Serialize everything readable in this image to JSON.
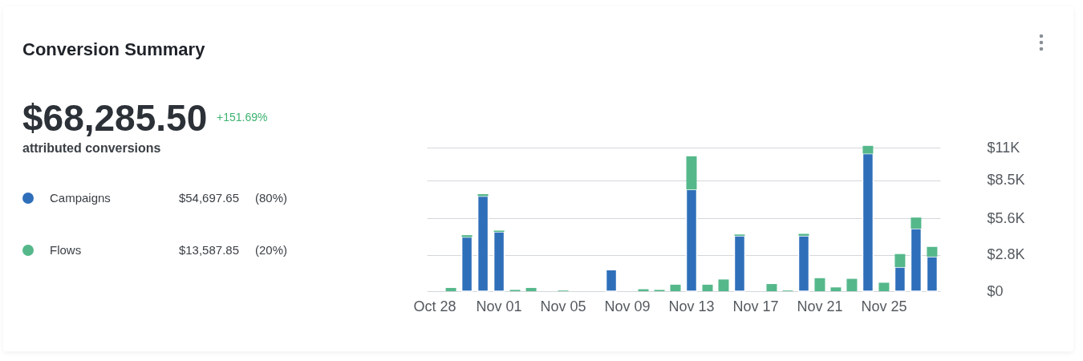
{
  "chart_data": {
    "type": "bar",
    "title": "Conversion Summary",
    "annotations": [
      "$68,285.50",
      "+151.69%",
      "attributed conversions",
      "$54,697.65",
      "(80%)",
      "$13,587.85",
      "(20%)"
    ],
    "categories": [
      "Oct 28",
      null,
      null,
      null,
      "Nov 01",
      null,
      null,
      null,
      "Nov 05",
      null,
      null,
      null,
      "Nov 09",
      null,
      null,
      null,
      "Nov 13",
      null,
      null,
      null,
      "Nov 17",
      null,
      null,
      null,
      "Nov 21",
      null,
      null,
      null,
      "Nov 25",
      null,
      null,
      null
    ],
    "stacked": true,
    "series": [
      {
        "name": "Campaigns",
        "color": "#2f6fba",
        "values": [
          0,
          0,
          4150,
          7300,
          4550,
          0,
          0,
          0,
          0,
          0,
          0,
          1650,
          0,
          0,
          0,
          0,
          7800,
          0,
          0,
          4250,
          0,
          0,
          0,
          4250,
          0,
          0,
          0,
          10550,
          0,
          1850,
          4800,
          2650
        ]
      },
      {
        "name": "Flows",
        "color": "#55b88b",
        "values": [
          0,
          250,
          150,
          150,
          100,
          100,
          250,
          0,
          50,
          0,
          0,
          0,
          0,
          150,
          100,
          500,
          2550,
          500,
          900,
          100,
          0,
          550,
          50,
          150,
          1000,
          300,
          950,
          600,
          650,
          1000,
          850,
          750
        ]
      }
    ],
    "ylim": [
      0,
      11200
    ],
    "yticks": [
      {
        "value": 0,
        "label": "$0"
      },
      {
        "value": 2800,
        "label": "$2.8K"
      },
      {
        "value": 5600,
        "label": "$5.6K"
      },
      {
        "value": 8500,
        "label": "$8.5K"
      },
      {
        "value": 11000,
        "label": "$11K"
      }
    ],
    "grid": "y",
    "legend": "left"
  }
}
